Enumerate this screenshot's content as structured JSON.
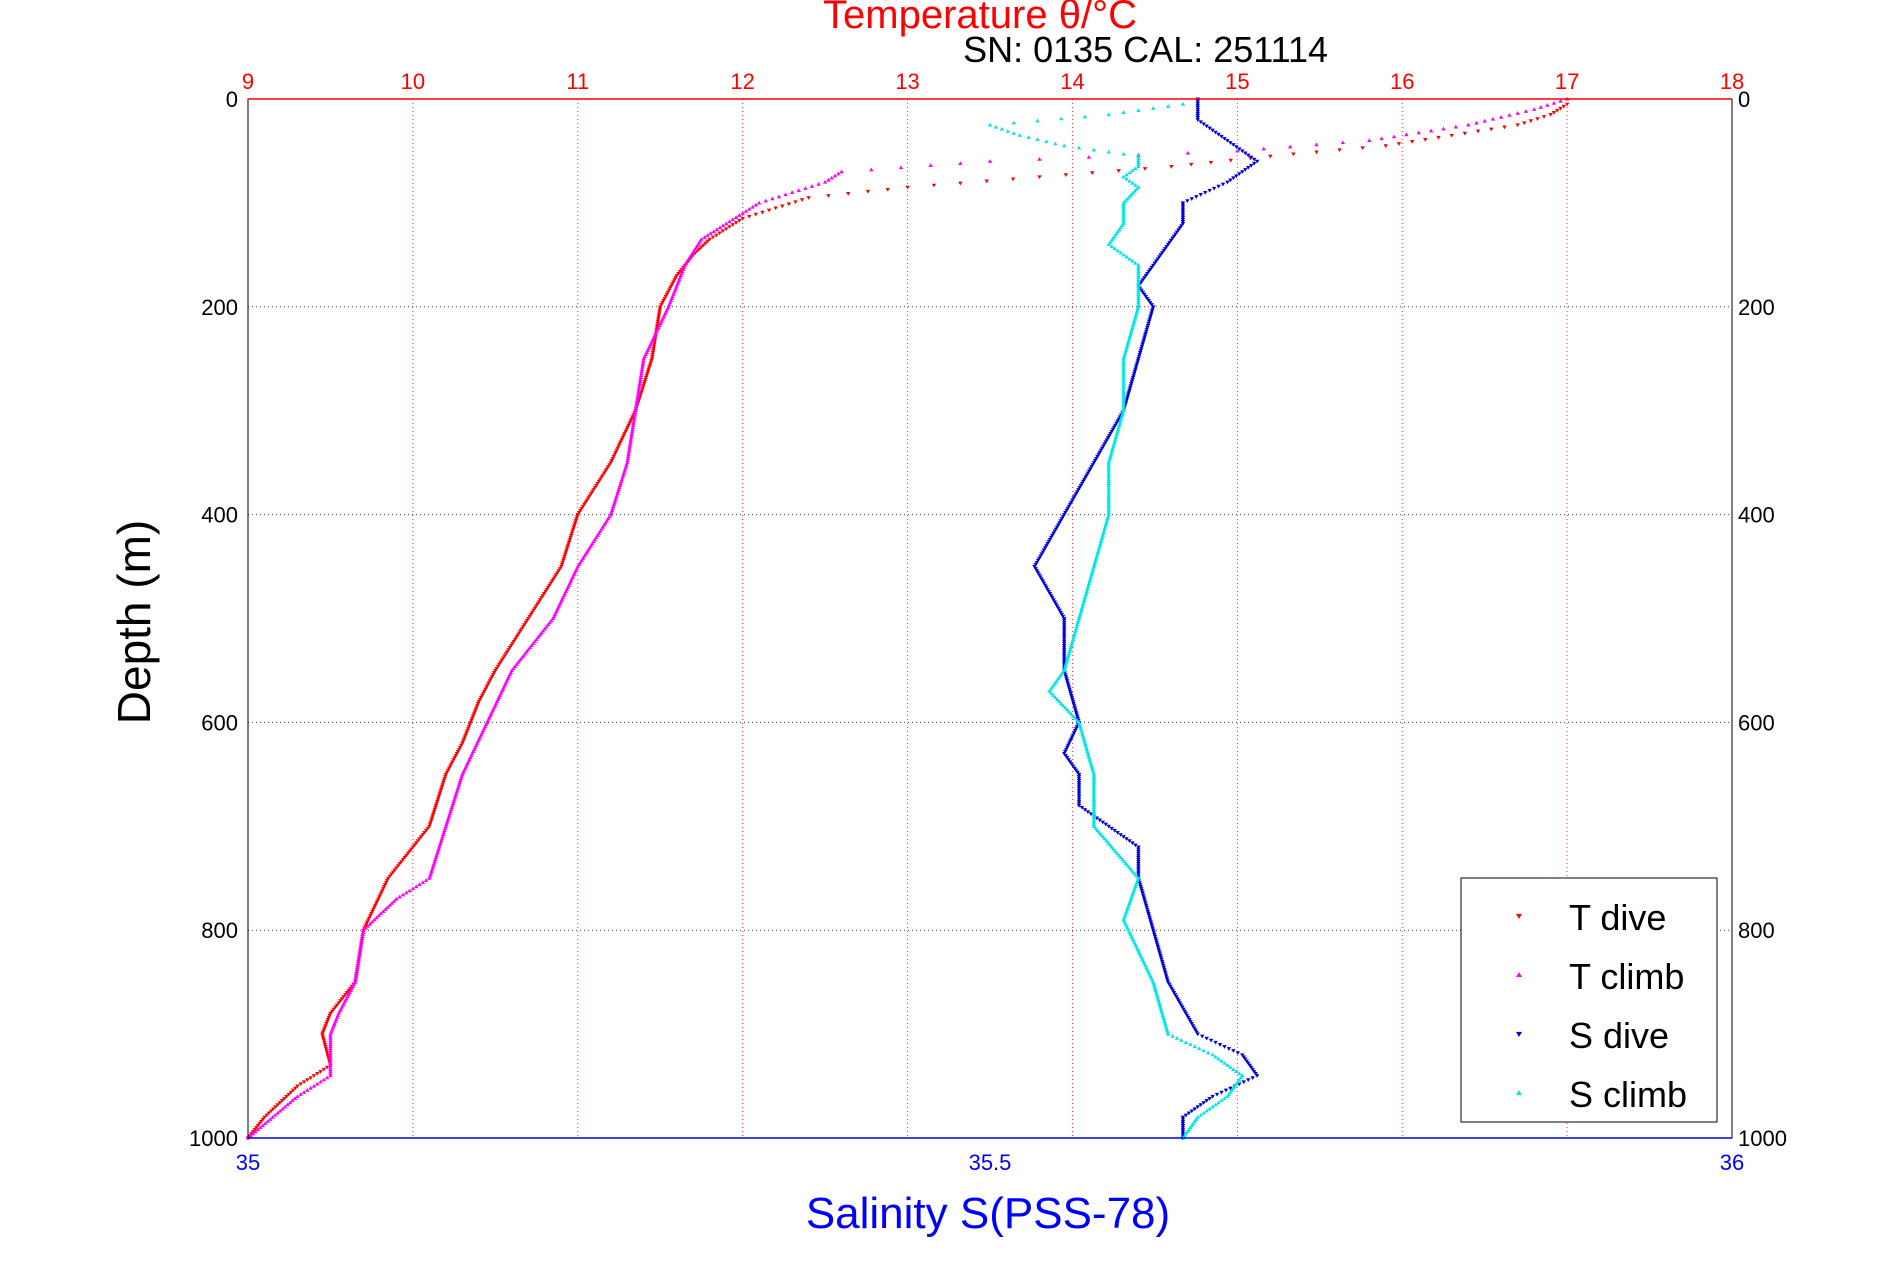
{
  "figure": {
    "top_title": "Temperature θ/°C",
    "sn_label": "SN: 0135  CAL: 251114"
  },
  "chart_data": {
    "type": "scatter",
    "ylabel": "Depth (m)",
    "xlabel_bottom": "Salinity S(PSS-78)",
    "xlabel_top": "Temperature θ/°C",
    "y_range": [
      0,
      1000
    ],
    "y_inverted": true,
    "y_ticks": [
      "0",
      "200",
      "400",
      "600",
      "800",
      "1000"
    ],
    "salinity_range": [
      35,
      36
    ],
    "salinity_ticks": [
      "35",
      "35.5",
      "36"
    ],
    "temperature_range": [
      9,
      18
    ],
    "temperature_ticks": [
      "9",
      "10",
      "11",
      "12",
      "13",
      "14",
      "15",
      "16",
      "17",
      "18"
    ],
    "grid": true,
    "legend_position": "bottom-right",
    "colors": {
      "t_dive": "#ff0000",
      "t_climb": "#ff00ff",
      "s_dive": "#0000dd",
      "s_climb": "#00e5e5",
      "temperature_axis": "#ff0000",
      "salinity_axis": "#0000ff"
    },
    "series": [
      {
        "name": "T dive",
        "axis": "temperature",
        "marker": "triangle-down",
        "depth": [
          5,
          15,
          25,
          35,
          45,
          55,
          65,
          75,
          85,
          95,
          105,
          115,
          125,
          135,
          150,
          170,
          200,
          250,
          300,
          350,
          400,
          450,
          500,
          550,
          580,
          600,
          620,
          650,
          700,
          750,
          800,
          850,
          880,
          900,
          930,
          950,
          980,
          1000
        ],
        "values": [
          17.0,
          16.9,
          16.7,
          16.3,
          15.9,
          15.2,
          14.6,
          13.8,
          13.0,
          12.4,
          12.2,
          12.0,
          11.9,
          11.8,
          11.7,
          11.6,
          11.5,
          11.45,
          11.35,
          11.2,
          11.0,
          10.9,
          10.7,
          10.5,
          10.4,
          10.35,
          10.3,
          10.2,
          10.1,
          9.85,
          9.7,
          9.65,
          9.5,
          9.45,
          9.5,
          9.3,
          9.1,
          9.0
        ]
      },
      {
        "name": "T climb",
        "axis": "temperature",
        "marker": "triangle-up",
        "depth": [
          0,
          10,
          25,
          40,
          50,
          60,
          70,
          80,
          100,
          120,
          135,
          160,
          200,
          250,
          300,
          350,
          400,
          450,
          500,
          550,
          600,
          650,
          700,
          750,
          770,
          800,
          850,
          880,
          900,
          940,
          960,
          980,
          1000
        ],
        "values": [
          17.0,
          16.8,
          16.4,
          15.8,
          15.0,
          13.5,
          12.6,
          12.5,
          12.1,
          11.9,
          11.75,
          11.65,
          11.55,
          11.4,
          11.35,
          11.3,
          11.2,
          11.0,
          10.85,
          10.6,
          10.45,
          10.3,
          10.2,
          10.1,
          9.9,
          9.7,
          9.65,
          9.55,
          9.5,
          9.5,
          9.3,
          9.15,
          9.0
        ]
      },
      {
        "name": "S dive",
        "axis": "salinity",
        "marker": "triangle-down",
        "depth": [
          0,
          20,
          40,
          60,
          80,
          100,
          120,
          140,
          160,
          180,
          200,
          250,
          300,
          350,
          400,
          450,
          500,
          550,
          600,
          630,
          650,
          680,
          700,
          720,
          750,
          800,
          850,
          900,
          920,
          940,
          960,
          980,
          1000
        ],
        "values": [
          35.64,
          35.64,
          35.66,
          35.68,
          35.66,
          35.63,
          35.63,
          35.62,
          35.61,
          35.6,
          35.61,
          35.6,
          35.59,
          35.57,
          35.55,
          35.53,
          35.55,
          35.55,
          35.56,
          35.55,
          35.56,
          35.56,
          35.58,
          35.6,
          35.6,
          35.61,
          35.62,
          35.64,
          35.67,
          35.68,
          35.65,
          35.63,
          35.63
        ]
      },
      {
        "name": "S climb",
        "axis": "salinity",
        "marker": "triangle-up",
        "depth": [
          5,
          15,
          25,
          35,
          45,
          55,
          65,
          75,
          85,
          100,
          120,
          140,
          160,
          200,
          250,
          300,
          350,
          400,
          450,
          500,
          550,
          570,
          600,
          650,
          700,
          750,
          790,
          850,
          900,
          920,
          940,
          960,
          980,
          1000
        ],
        "values": [
          35.63,
          35.58,
          35.5,
          35.52,
          35.55,
          35.6,
          35.6,
          35.59,
          35.6,
          35.59,
          35.59,
          35.58,
          35.6,
          35.6,
          35.59,
          35.59,
          35.58,
          35.58,
          35.57,
          35.56,
          35.55,
          35.54,
          35.56,
          35.57,
          35.57,
          35.6,
          35.59,
          35.61,
          35.62,
          35.65,
          35.67,
          35.66,
          35.64,
          35.63
        ]
      }
    ]
  }
}
